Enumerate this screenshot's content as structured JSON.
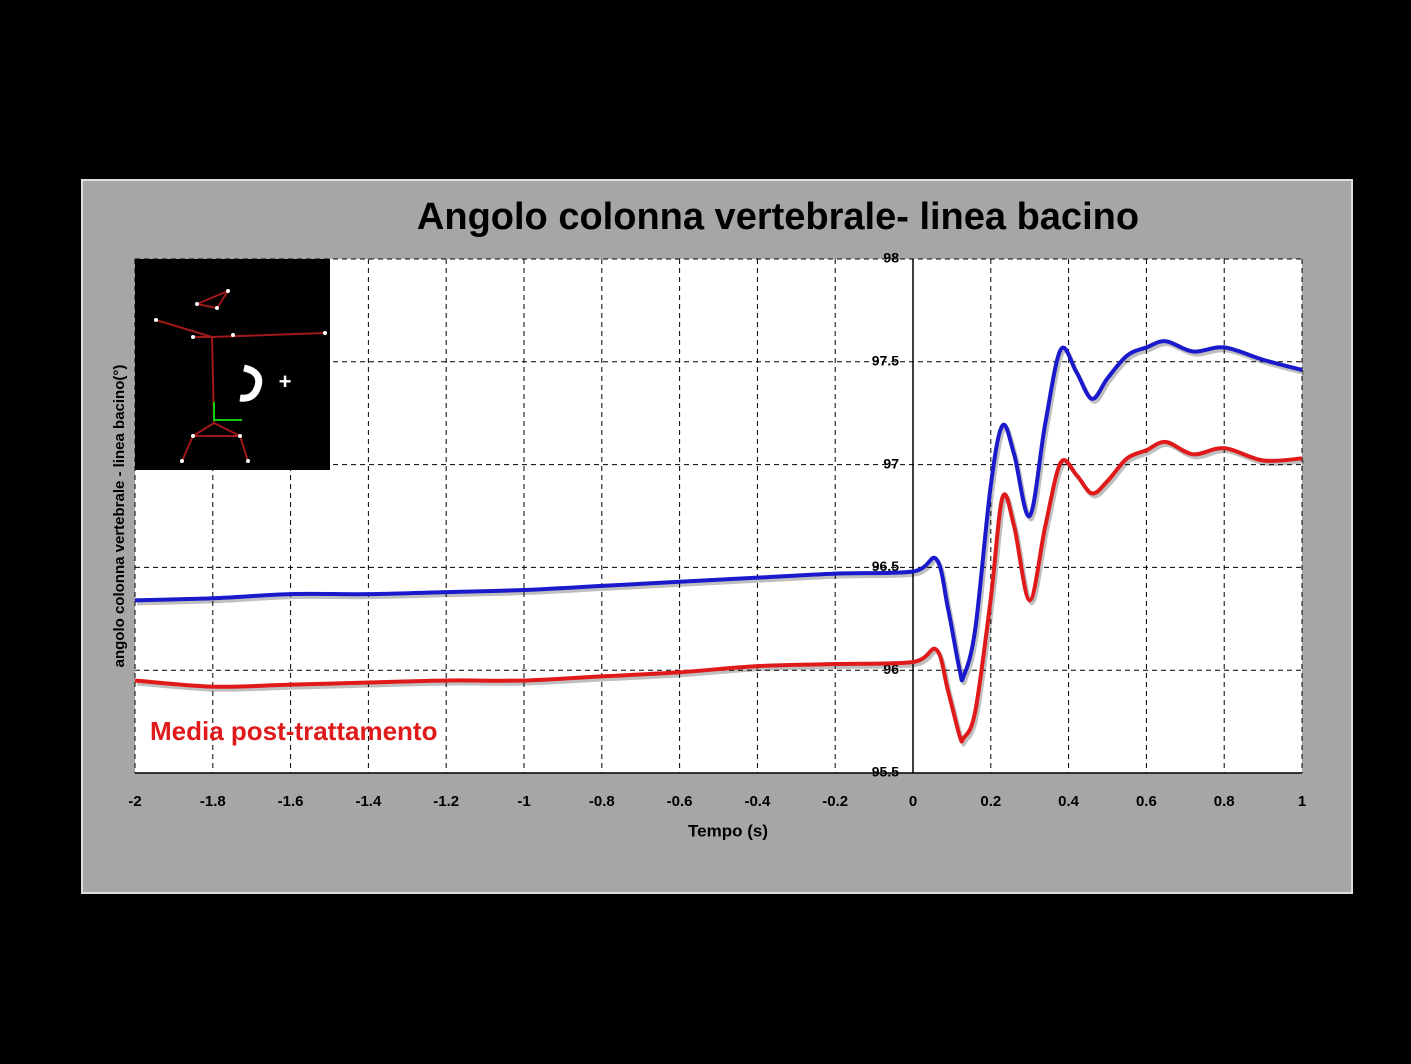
{
  "chart_data": {
    "type": "line",
    "title": "Angolo colonna vertebrale- linea bacino",
    "y_label": "angolo colonna vertebrale - linea bacino(°)",
    "x_label": "Tempo (s)",
    "annotation": "Media post-trattamento",
    "inset_label": "+",
    "x": [
      -2,
      -1.8,
      -1.6,
      -1.4,
      -1.2,
      -1,
      -0.8,
      -0.6,
      -0.4,
      -0.2,
      0,
      0.06,
      0.09,
      0.12,
      0.13,
      0.16,
      0.2,
      0.23,
      0.26,
      0.3,
      0.34,
      0.38,
      0.42,
      0.46,
      0.5,
      0.55,
      0.6,
      0.65,
      0.72,
      0.8,
      0.9,
      1
    ],
    "series": [
      {
        "color": "#1a1acc",
        "values": [
          96.34,
          96.35,
          96.37,
          96.37,
          96.38,
          96.39,
          96.41,
          96.43,
          96.45,
          96.47,
          96.48,
          96.54,
          96.3,
          96.0,
          95.97,
          96.2,
          96.9,
          97.19,
          97.05,
          96.75,
          97.2,
          97.56,
          97.45,
          97.32,
          97.42,
          97.53,
          97.57,
          97.6,
          97.55,
          97.57,
          97.51,
          97.46
        ]
      },
      {
        "color": "#e01a1a",
        "values": [
          95.95,
          95.92,
          95.93,
          95.94,
          95.95,
          95.95,
          95.97,
          95.99,
          96.02,
          96.03,
          96.04,
          96.1,
          95.9,
          95.68,
          95.67,
          95.8,
          96.35,
          96.84,
          96.7,
          96.34,
          96.7,
          97.01,
          96.95,
          96.86,
          96.92,
          97.03,
          97.07,
          97.11,
          97.05,
          97.08,
          97.02,
          97.03
        ]
      }
    ],
    "xlim": [
      -2,
      1
    ],
    "ylim": [
      95.5,
      98
    ],
    "xticks": [
      -2,
      -1.8,
      -1.6,
      -1.4,
      -1.2,
      -1,
      -0.8,
      -0.6,
      -0.4,
      -0.2,
      0,
      0.2,
      0.4,
      0.6,
      0.8,
      1
    ],
    "yticks": [
      95.5,
      96,
      96.5,
      97,
      97.5,
      98
    ],
    "grid": true
  }
}
